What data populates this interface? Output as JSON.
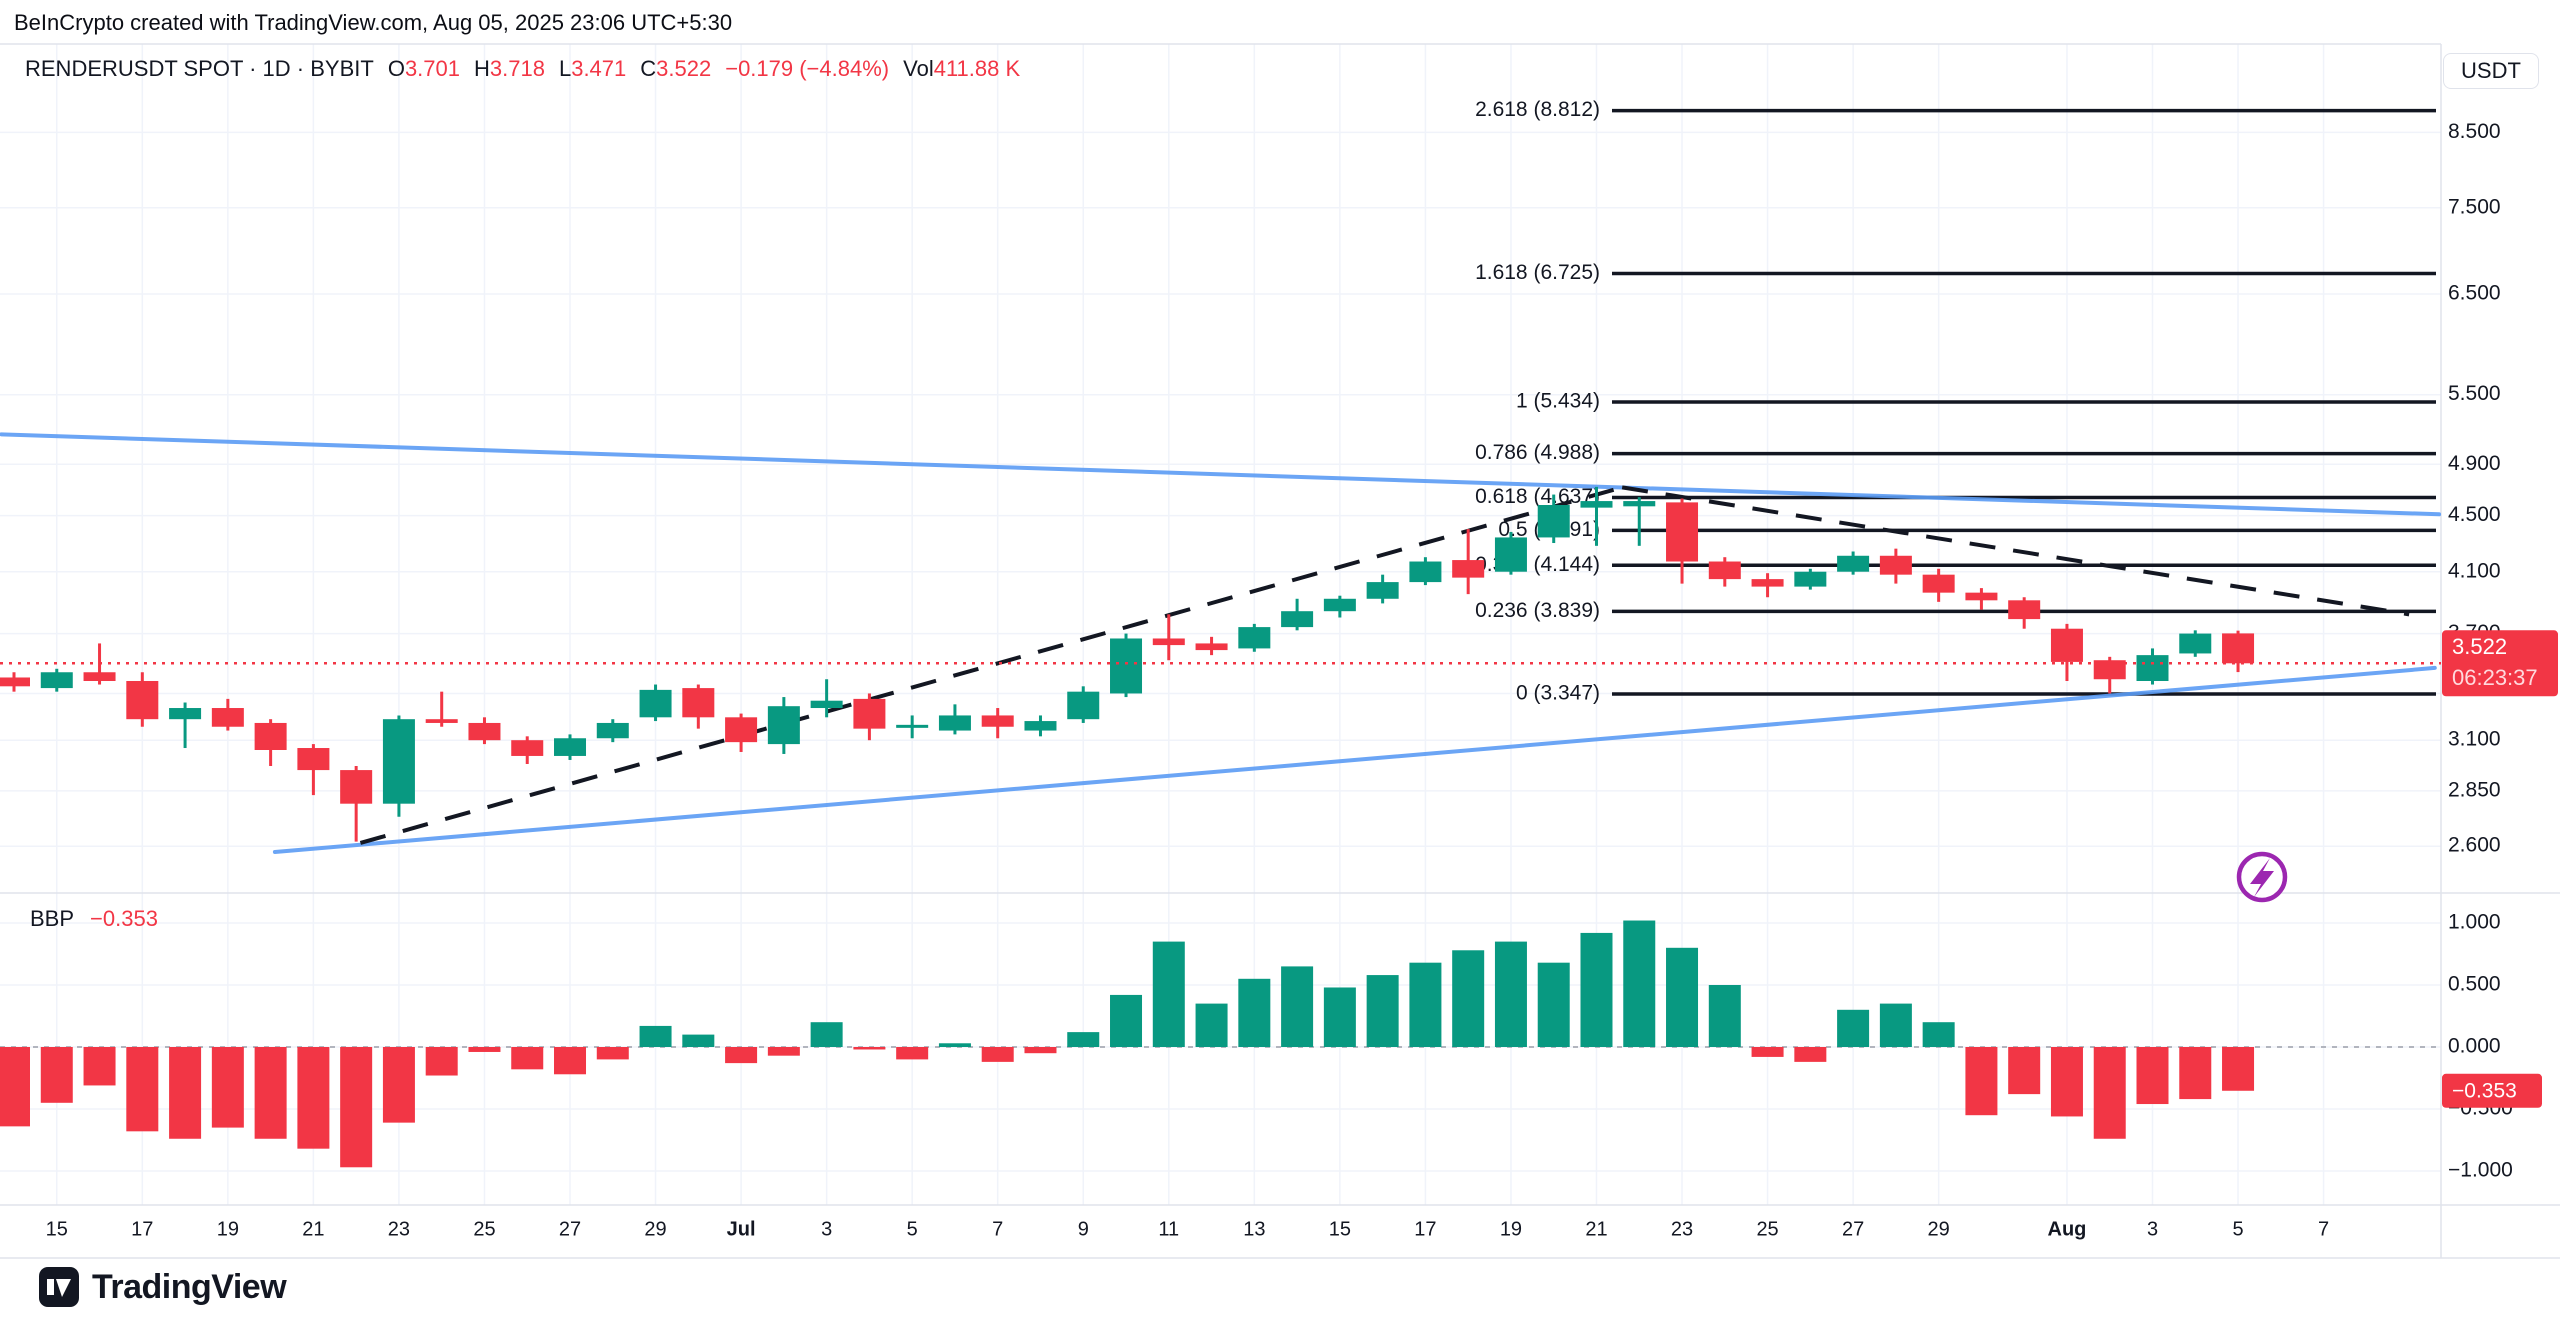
{
  "header": {
    "attribution": "BeInCrypto created with TradingView.com, Aug 05, 2025 23:06 UTC+5:30"
  },
  "legend": {
    "symbol_text": "RENDERUSDT SPOT · 1D · BYBIT",
    "o_label": "O",
    "o": "3.701",
    "h_label": "H",
    "h": "3.718",
    "l_label": "L",
    "l": "3.471",
    "c_label": "C",
    "c": "3.522",
    "change": "−0.179 (−4.84%)",
    "vol_label": "Vol",
    "vol": "411.88 K"
  },
  "indicator": {
    "name": "BBP",
    "value": "−0.353"
  },
  "price_axis": {
    "currency": "USDT",
    "labels": [
      "8.500",
      "7.500",
      "6.500",
      "5.500",
      "4.900",
      "4.500",
      "4.100",
      "3.700",
      "3.100",
      "2.850",
      "2.600"
    ],
    "gridline_only_levels": [
      3.35
    ],
    "last_price": "3.522",
    "countdown": "06:23:37"
  },
  "bbp_axis": {
    "labels": [
      "1.000",
      "0.500",
      "0.000",
      "−0.500",
      "−1.000"
    ],
    "values": [
      1.0,
      0.5,
      0.0,
      -0.5,
      -1.0
    ],
    "last_value": "−0.353"
  },
  "time_axis": {
    "ticks": [
      {
        "i": 1,
        "label": "15"
      },
      {
        "i": 3,
        "label": "17"
      },
      {
        "i": 5,
        "label": "19"
      },
      {
        "i": 7,
        "label": "21"
      },
      {
        "i": 9,
        "label": "23"
      },
      {
        "i": 11,
        "label": "25"
      },
      {
        "i": 13,
        "label": "27"
      },
      {
        "i": 15,
        "label": "29"
      },
      {
        "i": 17,
        "label": "Jul",
        "bold": true
      },
      {
        "i": 19,
        "label": "3"
      },
      {
        "i": 21,
        "label": "5"
      },
      {
        "i": 23,
        "label": "7"
      },
      {
        "i": 25,
        "label": "9"
      },
      {
        "i": 27,
        "label": "11"
      },
      {
        "i": 29,
        "label": "13"
      },
      {
        "i": 31,
        "label": "15"
      },
      {
        "i": 33,
        "label": "17"
      },
      {
        "i": 35,
        "label": "19"
      },
      {
        "i": 37,
        "label": "21"
      },
      {
        "i": 39,
        "label": "23"
      },
      {
        "i": 41,
        "label": "25"
      },
      {
        "i": 43,
        "label": "27"
      },
      {
        "i": 45,
        "label": "29"
      },
      {
        "i": 48,
        "label": "Aug",
        "bold": true
      },
      {
        "i": 50,
        "label": "3"
      },
      {
        "i": 52,
        "label": "5"
      },
      {
        "i": 54,
        "label": "7"
      }
    ]
  },
  "footer": {
    "brand": "TradingView"
  },
  "colors": {
    "up": "#089981",
    "down": "#F23645",
    "accent_red": "#F23645",
    "trendline_blue": "#5B9CF5",
    "fib_black": "#131722",
    "purple": "#9C27B0",
    "text": "#131722",
    "grid": "#F0F3FA",
    "border": "#E0E3EB",
    "zero_dash": "#B2B5BE"
  },
  "chart_data": {
    "type": "candlestick",
    "title": "RENDERUSDT SPOT · 1D · BYBIT",
    "symbol": "RENDERUSDT",
    "exchange": "BYBIT",
    "interval": "1D",
    "price_scale": "log",
    "ylim": [
      2.6,
      8.812
    ],
    "grid": true,
    "dates": [
      "Jun 14",
      "Jun 15",
      "Jun 16",
      "Jun 17",
      "Jun 18",
      "Jun 19",
      "Jun 20",
      "Jun 21",
      "Jun 22",
      "Jun 23",
      "Jun 24",
      "Jun 25",
      "Jun 26",
      "Jun 27",
      "Jun 28",
      "Jun 29",
      "Jun 30",
      "Jul 1",
      "Jul 2",
      "Jul 3",
      "Jul 4",
      "Jul 5",
      "Jul 6",
      "Jul 7",
      "Jul 8",
      "Jul 9",
      "Jul 10",
      "Jul 11",
      "Jul 12",
      "Jul 13",
      "Jul 14",
      "Jul 15",
      "Jul 16",
      "Jul 17",
      "Jul 18",
      "Jul 19",
      "Jul 20",
      "Jul 21",
      "Jul 22",
      "Jul 23",
      "Jul 24",
      "Jul 25",
      "Jul 26",
      "Jul 27",
      "Jul 28",
      "Jul 29",
      "Jul 30",
      "Jul 31",
      "Aug 1",
      "Aug 2",
      "Aug 3",
      "Aug 4",
      "Aug 5"
    ],
    "candles_ohlc": [
      [
        3.44,
        3.47,
        3.36,
        3.39
      ],
      [
        3.38,
        3.49,
        3.36,
        3.47
      ],
      [
        3.47,
        3.64,
        3.4,
        3.42
      ],
      [
        3.42,
        3.47,
        3.17,
        3.21
      ],
      [
        3.21,
        3.3,
        3.06,
        3.27
      ],
      [
        3.27,
        3.32,
        3.15,
        3.17
      ],
      [
        3.19,
        3.21,
        2.97,
        3.05
      ],
      [
        3.06,
        3.08,
        2.83,
        2.95
      ],
      [
        2.95,
        2.97,
        2.62,
        2.79
      ],
      [
        2.79,
        3.23,
        2.73,
        3.21
      ],
      [
        3.21,
        3.36,
        3.17,
        3.19
      ],
      [
        3.19,
        3.22,
        3.08,
        3.1
      ],
      [
        3.1,
        3.12,
        2.98,
        3.02
      ],
      [
        3.02,
        3.13,
        3.0,
        3.11
      ],
      [
        3.11,
        3.21,
        3.09,
        3.19
      ],
      [
        3.22,
        3.4,
        3.2,
        3.37
      ],
      [
        3.38,
        3.4,
        3.16,
        3.22
      ],
      [
        3.22,
        3.24,
        3.04,
        3.09
      ],
      [
        3.08,
        3.33,
        3.03,
        3.28
      ],
      [
        3.27,
        3.43,
        3.22,
        3.31
      ],
      [
        3.32,
        3.35,
        3.1,
        3.16
      ],
      [
        3.17,
        3.23,
        3.11,
        3.18
      ],
      [
        3.15,
        3.29,
        3.13,
        3.23
      ],
      [
        3.23,
        3.27,
        3.11,
        3.17
      ],
      [
        3.15,
        3.23,
        3.12,
        3.2
      ],
      [
        3.21,
        3.39,
        3.19,
        3.36
      ],
      [
        3.35,
        3.7,
        3.33,
        3.67
      ],
      [
        3.67,
        3.82,
        3.54,
        3.63
      ],
      [
        3.64,
        3.68,
        3.57,
        3.6
      ],
      [
        3.61,
        3.76,
        3.59,
        3.74
      ],
      [
        3.74,
        3.92,
        3.72,
        3.84
      ],
      [
        3.84,
        3.94,
        3.8,
        3.92
      ],
      [
        3.92,
        4.08,
        3.89,
        4.03
      ],
      [
        4.03,
        4.2,
        4.01,
        4.17
      ],
      [
        4.18,
        4.4,
        3.95,
        4.06
      ],
      [
        4.1,
        4.38,
        4.08,
        4.34
      ],
      [
        4.34,
        4.66,
        4.3,
        4.58
      ],
      [
        4.56,
        4.72,
        4.28,
        4.61
      ],
      [
        4.57,
        4.64,
        4.28,
        4.61
      ],
      [
        4.6,
        4.63,
        4.02,
        4.17
      ],
      [
        4.17,
        4.2,
        4.0,
        4.05
      ],
      [
        4.05,
        4.09,
        3.93,
        4.0
      ],
      [
        4.0,
        4.12,
        3.98,
        4.1
      ],
      [
        4.1,
        4.24,
        4.08,
        4.21
      ],
      [
        4.21,
        4.26,
        4.02,
        4.08
      ],
      [
        4.08,
        4.12,
        3.9,
        3.96
      ],
      [
        3.96,
        3.99,
        3.85,
        3.91
      ],
      [
        3.91,
        3.93,
        3.73,
        3.79
      ],
      [
        3.73,
        3.76,
        3.42,
        3.53
      ],
      [
        3.54,
        3.56,
        3.35,
        3.43
      ],
      [
        3.42,
        3.61,
        3.4,
        3.57
      ],
      [
        3.58,
        3.72,
        3.56,
        3.7
      ],
      [
        3.701,
        3.718,
        3.471,
        3.522
      ]
    ],
    "bbp": {
      "name": "Bull Bear Power",
      "values": [
        -0.64,
        -0.45,
        -0.31,
        -0.68,
        -0.74,
        -0.65,
        -0.74,
        -0.82,
        -0.97,
        -0.61,
        -0.23,
        -0.04,
        -0.18,
        -0.22,
        -0.1,
        0.17,
        0.1,
        -0.13,
        -0.07,
        0.2,
        -0.02,
        -0.1,
        0.03,
        -0.12,
        -0.05,
        0.12,
        0.42,
        0.85,
        0.35,
        0.55,
        0.65,
        0.48,
        0.58,
        0.68,
        0.78,
        0.85,
        0.68,
        0.92,
        1.02,
        0.8,
        0.5,
        -0.08,
        -0.12,
        0.3,
        0.35,
        0.2,
        -0.55,
        -0.38,
        -0.56,
        -0.74,
        -0.46,
        -0.42,
        -0.353
      ],
      "last": -0.353,
      "ylim": [
        -1.0,
        1.0
      ]
    },
    "current_price": 3.522,
    "fib_retracement": [
      {
        "level": "2.618",
        "price": 8.812,
        "label": "2.618 (8.812)"
      },
      {
        "level": "1.618",
        "price": 6.725,
        "label": "1.618 (6.725)"
      },
      {
        "level": "1",
        "price": 5.434,
        "label": "1 (5.434)"
      },
      {
        "level": "0.786",
        "price": 4.988,
        "label": "0.786 (4.988)"
      },
      {
        "level": "0.618",
        "price": 4.637,
        "label": "0.618 (4.637)"
      },
      {
        "level": "0.5",
        "price": 4.391,
        "label": "0.5 (4.391)"
      },
      {
        "level": "0.382",
        "price": 4.144,
        "label": "0.382 (4.144)"
      },
      {
        "level": "0.236",
        "price": 3.839,
        "label": "0.236 (3.839)"
      },
      {
        "level": "0",
        "price": 3.347,
        "label": "0 (3.347)"
      }
    ],
    "trendlines": [
      {
        "name": "upper-descending-trendline",
        "style": "solid",
        "color_key": "trendline_blue",
        "from": {
          "day": -0.3,
          "price": 5.15
        },
        "to": {
          "day": 56.7,
          "price": 4.51
        }
      },
      {
        "name": "lower-ascending-trendline",
        "style": "solid",
        "color_key": "trendline_blue",
        "from": {
          "day": 6.1,
          "price": 2.575
        },
        "to": {
          "day": 56.6,
          "price": 3.495
        }
      },
      {
        "name": "rising-dashed-trendline",
        "style": "dashed",
        "color_key": "fib_black",
        "from": {
          "day": 8.1,
          "price": 2.614
        },
        "to": {
          "day": 37.6,
          "price": 4.716
        }
      },
      {
        "name": "falling-dashed-trendline",
        "style": "dashed",
        "color_key": "fib_black",
        "from": {
          "day": 37.6,
          "price": 4.716
        },
        "to": {
          "day": 56.0,
          "price": 3.82
        }
      }
    ]
  }
}
